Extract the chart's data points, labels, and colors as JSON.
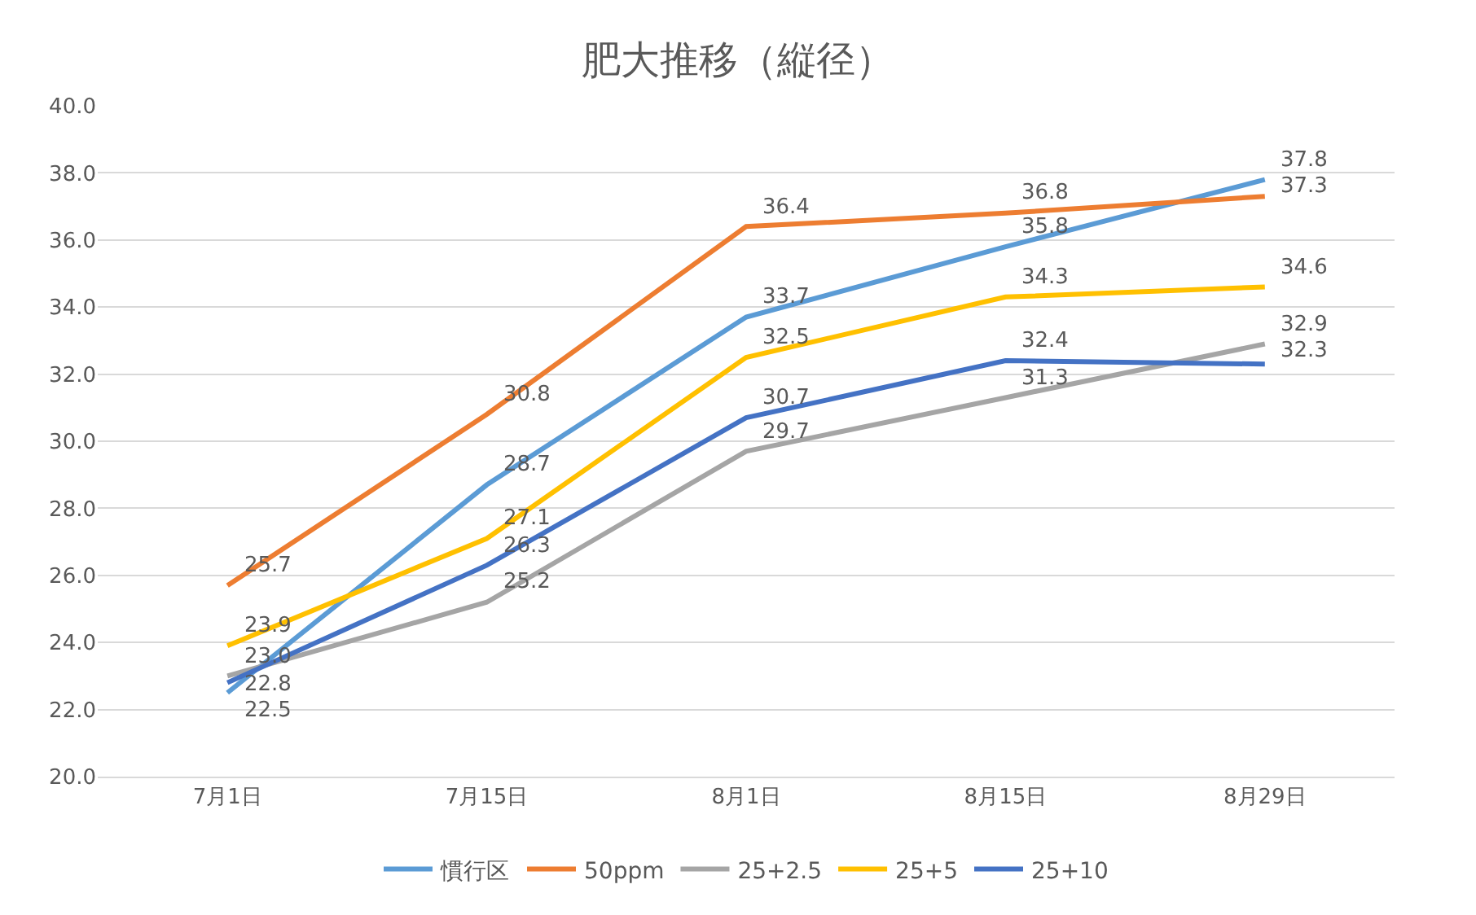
{
  "chart_data": {
    "type": "line",
    "title": "肥大推移（縦径）",
    "categories": [
      "7月1日",
      "7月15日",
      "8月1日",
      "8月15日",
      "8月29日"
    ],
    "series": [
      {
        "name": "慣行区",
        "color": "#5b9bd5",
        "values": [
          22.5,
          28.7,
          33.7,
          35.8,
          37.8
        ],
        "value_labels": [
          "22.5",
          "28.7",
          "33.7",
          "35.8",
          "37.8"
        ]
      },
      {
        "name": "50ppm",
        "color": "#ed7d31",
        "values": [
          25.7,
          30.8,
          36.4,
          36.8,
          37.3
        ],
        "value_labels": [
          "25.7",
          "30.8",
          "36.4",
          "36.8",
          "37.3"
        ]
      },
      {
        "name": "25+2.5",
        "color": "#a5a5a5",
        "values": [
          23.0,
          25.2,
          29.7,
          31.3,
          32.9
        ],
        "value_labels": [
          "23.0",
          "25.2",
          "29.7",
          "31.3",
          "32.9"
        ]
      },
      {
        "name": "25+5",
        "color": "#ffc000",
        "values": [
          23.9,
          27.1,
          32.5,
          34.3,
          34.6
        ],
        "value_labels": [
          "23.9",
          "27.1",
          "32.5",
          "34.3",
          "34.6"
        ]
      },
      {
        "name": "25+10",
        "color": "#4472c4",
        "values": [
          22.8,
          26.3,
          30.7,
          32.4,
          32.3
        ],
        "value_labels": [
          "22.8",
          "26.3",
          "30.7",
          "32.4",
          "32.3"
        ]
      }
    ],
    "ylim": [
      20,
      40
    ],
    "yticks": [
      {
        "value": 20,
        "label": "20.0"
      },
      {
        "value": 22,
        "label": "22.0"
      },
      {
        "value": 24,
        "label": "24.0"
      },
      {
        "value": 26,
        "label": "26.0"
      },
      {
        "value": 28,
        "label": "28.0"
      },
      {
        "value": 30,
        "label": "30.0"
      },
      {
        "value": 32,
        "label": "32.0"
      },
      {
        "value": 34,
        "label": "34.0"
      },
      {
        "value": 36,
        "label": "36.0"
      },
      {
        "value": 38,
        "label": "38.0"
      },
      {
        "value": 40,
        "label": "40.0"
      }
    ],
    "grid": "y",
    "legend": "bottom",
    "marker": "none",
    "line_style": "solid"
  }
}
